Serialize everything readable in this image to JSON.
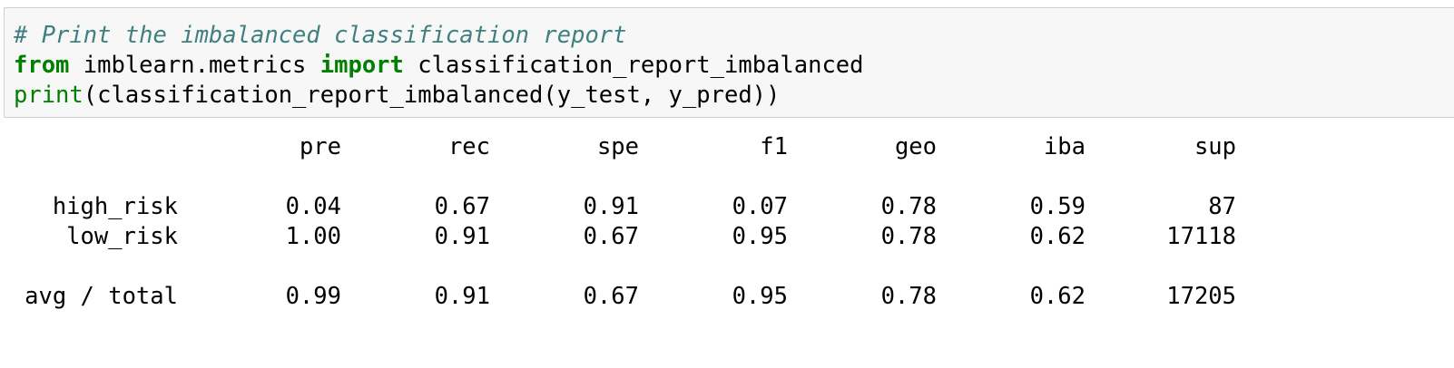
{
  "code": {
    "comment": "# Print the imbalanced classification report",
    "line2": {
      "kw_from": "from",
      "module": " imblearn.metrics ",
      "kw_import": "import",
      "name": " classification_report_imbalanced"
    },
    "line3": {
      "builtin": "print",
      "rest": "(classification_report_imbalanced(y_test, y_pred))"
    }
  },
  "report": {
    "columns": [
      "pre",
      "rec",
      "spe",
      "f1",
      "geo",
      "iba",
      "sup"
    ],
    "rows": [
      {
        "label": "high_risk",
        "values": [
          "0.04",
          "0.67",
          "0.91",
          "0.07",
          "0.78",
          "0.59",
          "87"
        ]
      },
      {
        "label": "low_risk",
        "values": [
          "1.00",
          "0.91",
          "0.67",
          "0.95",
          "0.78",
          "0.62",
          "17118"
        ]
      }
    ],
    "total": {
      "label": "avg / total",
      "values": [
        "0.99",
        "0.91",
        "0.67",
        "0.95",
        "0.78",
        "0.62",
        "17205"
      ]
    }
  }
}
